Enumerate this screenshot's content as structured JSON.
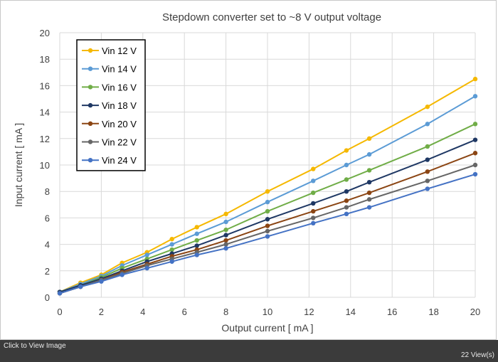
{
  "footer": {
    "caption": "Click to View Image",
    "views": "22 View(s)"
  },
  "chart_data": {
    "type": "line",
    "title": "Stepdown converter set to ~8 V output voltage",
    "xlabel": "Output current [ mA ]",
    "ylabel": "Input current [ mA ]",
    "xlim": [
      0,
      20
    ],
    "ylim": [
      0,
      20
    ],
    "xticks": [
      "0",
      "2",
      "4",
      "6",
      "8",
      "10",
      "12",
      "14",
      "16",
      "18",
      "20"
    ],
    "yticks": [
      "0",
      "2",
      "4",
      "6",
      "8",
      "10",
      "12",
      "14",
      "16",
      "18",
      "20"
    ],
    "grid": true,
    "legend_position": "top-left",
    "x": [
      0,
      1,
      2,
      3,
      4.2,
      5.4,
      6.6,
      8,
      10,
      12.2,
      13.8,
      14.9,
      17.7,
      20
    ],
    "series": [
      {
        "name": "Vin 12 V",
        "color": "#F5B800",
        "values": [
          0.4,
          1.1,
          1.7,
          2.6,
          3.4,
          4.4,
          5.3,
          6.3,
          8.0,
          9.7,
          11.1,
          12.0,
          14.4,
          16.5
        ]
      },
      {
        "name": "Vin 14 V",
        "color": "#5B9BD5",
        "values": [
          0.4,
          1.0,
          1.6,
          2.4,
          3.2,
          4.0,
          4.8,
          5.7,
          7.2,
          8.8,
          10.0,
          10.8,
          13.1,
          15.2
        ]
      },
      {
        "name": "Vin 16 V",
        "color": "#70AD47",
        "values": [
          0.4,
          0.9,
          1.5,
          2.2,
          2.9,
          3.6,
          4.3,
          5.1,
          6.5,
          7.9,
          8.9,
          9.6,
          11.4,
          13.1
        ]
      },
      {
        "name": "Vin 18 V",
        "color": "#1F3864",
        "values": [
          0.4,
          0.9,
          1.4,
          2.0,
          2.7,
          3.3,
          3.9,
          4.7,
          5.9,
          7.1,
          8.0,
          8.7,
          10.4,
          11.9
        ]
      },
      {
        "name": "Vin 20 V",
        "color": "#8B4513",
        "values": [
          0.3,
          0.8,
          1.3,
          1.9,
          2.5,
          3.1,
          3.6,
          4.3,
          5.4,
          6.5,
          7.3,
          7.9,
          9.5,
          10.9
        ]
      },
      {
        "name": "Vin 22 V",
        "color": "#666666",
        "values": [
          0.3,
          0.8,
          1.3,
          1.8,
          2.4,
          2.9,
          3.4,
          4.0,
          5.0,
          6.0,
          6.8,
          7.4,
          8.8,
          10.0
        ]
      },
      {
        "name": "Vin 24 V",
        "color": "#4472C4",
        "values": [
          0.3,
          0.8,
          1.2,
          1.7,
          2.2,
          2.7,
          3.2,
          3.7,
          4.6,
          5.6,
          6.3,
          6.8,
          8.2,
          9.3
        ]
      }
    ]
  }
}
